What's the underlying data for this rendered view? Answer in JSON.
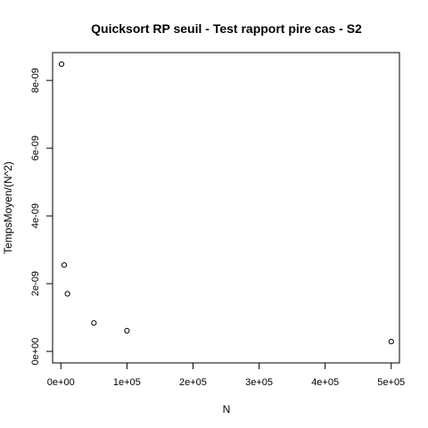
{
  "chart_data": {
    "type": "scatter",
    "title": "Quicksort RP seuil - Test rapport pire cas - S2",
    "xlabel": "N",
    "ylabel": "TempsMoyen/(N^2)",
    "xlim": [
      -12500,
      512500
    ],
    "ylim": [
      -3.4e-10,
      8.82e-09
    ],
    "x_ticks": [
      0,
      100000,
      200000,
      300000,
      400000,
      500000
    ],
    "x_tick_labels": [
      "0e+00",
      "1e+05",
      "2e+05",
      "3e+05",
      "4e+05",
      "5e+05"
    ],
    "y_ticks": [
      0,
      2e-09,
      4e-09,
      6e-09,
      8e-09
    ],
    "y_tick_labels": [
      "0e+00",
      "2e-09",
      "4e-09",
      "6e-09",
      "8e-09"
    ],
    "grid": false,
    "series": [
      {
        "x": [
          1000,
          5000,
          10000,
          50000,
          100000,
          500000
        ],
        "y": [
          8.48e-09,
          2.55e-09,
          1.7e-09,
          8.4e-10,
          6.1e-10,
          2.9e-10
        ]
      }
    ]
  }
}
